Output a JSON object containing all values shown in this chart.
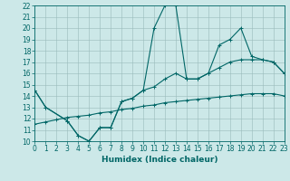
{
  "xlabel": "Humidex (Indice chaleur)",
  "bg_color": "#cce8e8",
  "line_color": "#006666",
  "grid_color": "#99bbbb",
  "xlim": [
    0,
    23
  ],
  "ylim": [
    10,
    22
  ],
  "xticks": [
    0,
    1,
    2,
    3,
    4,
    5,
    6,
    7,
    8,
    9,
    10,
    11,
    12,
    13,
    14,
    15,
    16,
    17,
    18,
    19,
    20,
    21,
    22,
    23
  ],
  "yticks": [
    10,
    11,
    12,
    13,
    14,
    15,
    16,
    17,
    18,
    19,
    20,
    21,
    22
  ],
  "line1_x": [
    0,
    1,
    3,
    4,
    5,
    6,
    7,
    8,
    9,
    10,
    11,
    12,
    13,
    14,
    15,
    16,
    17,
    18,
    19,
    20,
    21,
    22,
    23
  ],
  "line1_y": [
    14.5,
    13.0,
    11.8,
    10.5,
    10.0,
    11.2,
    11.2,
    13.5,
    13.8,
    14.5,
    20.0,
    22.0,
    22.0,
    15.5,
    15.5,
    16.0,
    18.5,
    19.0,
    20.0,
    17.5,
    17.2,
    17.0,
    16.0
  ],
  "line2_x": [
    0,
    1,
    3,
    4,
    5,
    6,
    7,
    8,
    9,
    10,
    11,
    12,
    13,
    14,
    15,
    16,
    17,
    18,
    19,
    20,
    21,
    22,
    23
  ],
  "line2_y": [
    14.5,
    13.0,
    11.8,
    10.5,
    10.0,
    11.2,
    11.2,
    13.5,
    13.8,
    14.5,
    14.8,
    15.5,
    16.0,
    15.5,
    15.5,
    16.0,
    16.5,
    17.0,
    17.2,
    17.2,
    17.2,
    17.0,
    16.0
  ],
  "line3_x": [
    0,
    1,
    2,
    3,
    4,
    5,
    6,
    7,
    8,
    9,
    10,
    11,
    12,
    13,
    14,
    15,
    16,
    17,
    18,
    19,
    20,
    21,
    22,
    23
  ],
  "line3_y": [
    11.5,
    11.7,
    11.9,
    12.1,
    12.2,
    12.3,
    12.5,
    12.6,
    12.8,
    12.9,
    13.1,
    13.2,
    13.4,
    13.5,
    13.6,
    13.7,
    13.8,
    13.9,
    14.0,
    14.1,
    14.2,
    14.2,
    14.2,
    14.0
  ],
  "tick_fontsize": 5.5,
  "xlabel_fontsize": 6.5,
  "marker_size": 3,
  "linewidth": 0.8
}
